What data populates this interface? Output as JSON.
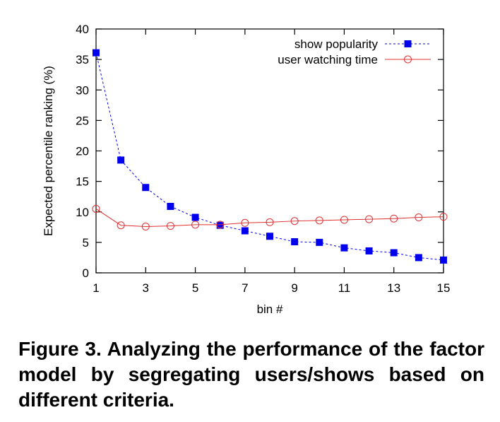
{
  "chart_data": {
    "type": "line",
    "title": "",
    "xlabel": "bin #",
    "ylabel": "Expected percentile ranking (%)",
    "xlim": [
      1,
      15
    ],
    "ylim": [
      0,
      40
    ],
    "xticks": [
      1,
      3,
      5,
      7,
      9,
      11,
      13,
      15
    ],
    "yticks": [
      0,
      5,
      10,
      15,
      20,
      25,
      30,
      35,
      40
    ],
    "grid": false,
    "legend_position": "top-right",
    "x": [
      1,
      2,
      3,
      4,
      5,
      6,
      7,
      8,
      9,
      10,
      11,
      12,
      13,
      14,
      15
    ],
    "series": [
      {
        "name": "show popularity",
        "color": "#0000ee",
        "line_style": "dotted",
        "marker": "filled-square",
        "values": [
          36.1,
          18.5,
          14.0,
          10.9,
          9.1,
          7.8,
          6.9,
          6.0,
          5.1,
          5.0,
          4.1,
          3.6,
          3.3,
          2.5,
          2.1
        ]
      },
      {
        "name": "user watching time",
        "color": "#e03030",
        "line_style": "solid",
        "marker": "open-circle",
        "values": [
          10.5,
          7.8,
          7.6,
          7.7,
          7.9,
          7.9,
          8.2,
          8.3,
          8.5,
          8.6,
          8.7,
          8.8,
          8.9,
          9.1,
          9.2
        ]
      }
    ]
  },
  "caption": "Figure 3. Analyzing the performance of the factor model by segregating users/shows based on different criteria."
}
